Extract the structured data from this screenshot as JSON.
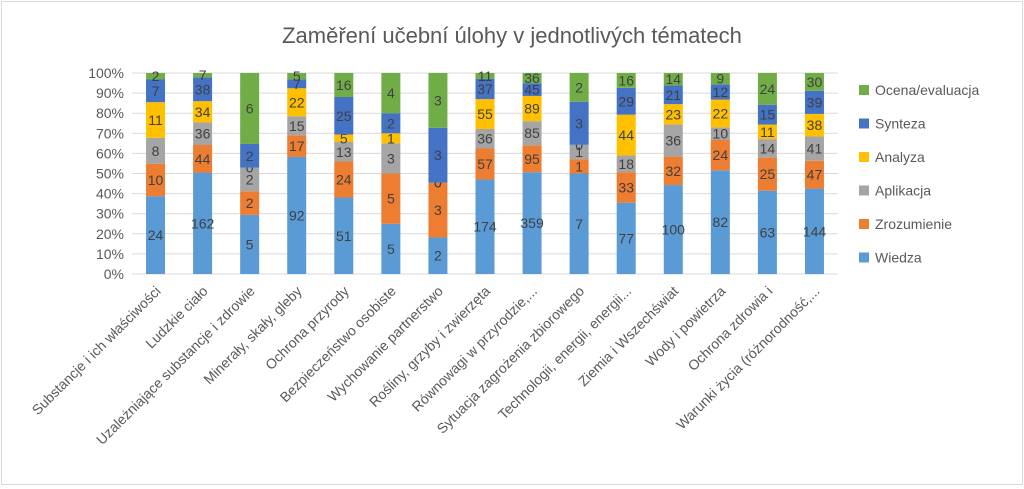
{
  "chart_data": {
    "type": "bar",
    "stacked": "percent",
    "title": "Zaměření učební úlohy v jednotlivých tématech",
    "xlabel": "",
    "ylabel": "",
    "ylim": [
      0,
      100
    ],
    "yticks": [
      "0%",
      "10%",
      "20%",
      "30%",
      "40%",
      "50%",
      "60%",
      "70%",
      "80%",
      "90%",
      "100%"
    ],
    "grid": true,
    "legend_position": "right",
    "categories": [
      "Substancje i ich właściwości",
      "Ludzkie ciało",
      "Uzależniające substancje i zdrowie",
      "Minerały, skały, gleby",
      "Ochrona przyrody",
      "Bezpieczeństwo osobiste",
      "Wychowanie partnerstwo",
      "Rośliny, grzyby i zwierzęta",
      "Równowagi w przyrodzie,...",
      "Sytuacja zagrożenia zbiorowego",
      "Technologii, energii, energii...",
      "Ziemia i Wszechświat",
      "Wody i powietrza",
      "Ochrona zdrowia i",
      "Warunki życia (różnorodność,..."
    ],
    "series": [
      {
        "name": "Wiedza",
        "color": "#5b9bd5",
        "values": [
          24,
          162,
          5,
          92,
          51,
          5,
          2,
          174,
          359,
          7,
          77,
          100,
          82,
          63,
          144
        ]
      },
      {
        "name": "Zrozumienie",
        "color": "#ed7d31",
        "values": [
          10,
          44,
          2,
          17,
          24,
          5,
          3,
          57,
          95,
          1,
          33,
          32,
          24,
          25,
          47
        ]
      },
      {
        "name": "Aplikacja",
        "color": "#a5a5a5",
        "values": [
          8,
          36,
          2,
          15,
          13,
          3,
          0,
          36,
          85,
          1,
          18,
          36,
          10,
          14,
          41
        ]
      },
      {
        "name": "Analyza",
        "color": "#ffc000",
        "values": [
          11,
          34,
          0,
          22,
          5,
          1,
          0,
          55,
          89,
          0,
          44,
          23,
          22,
          11,
          38
        ]
      },
      {
        "name": "Synteza",
        "color": "#4472c4",
        "values": [
          7,
          38,
          2,
          7,
          25,
          2,
          3,
          37,
          45,
          3,
          29,
          21,
          12,
          15,
          39
        ]
      },
      {
        "name": "Ocena/evaluacja",
        "color": "#70ad47",
        "values": [
          2,
          7,
          6,
          5,
          16,
          4,
          3,
          11,
          36,
          2,
          16,
          14,
          9,
          24,
          30
        ]
      }
    ],
    "legend_order": [
      "Ocena/evaluacja",
      "Synteza",
      "Analyza",
      "Aplikacja",
      "Zrozumienie",
      "Wiedza"
    ]
  }
}
